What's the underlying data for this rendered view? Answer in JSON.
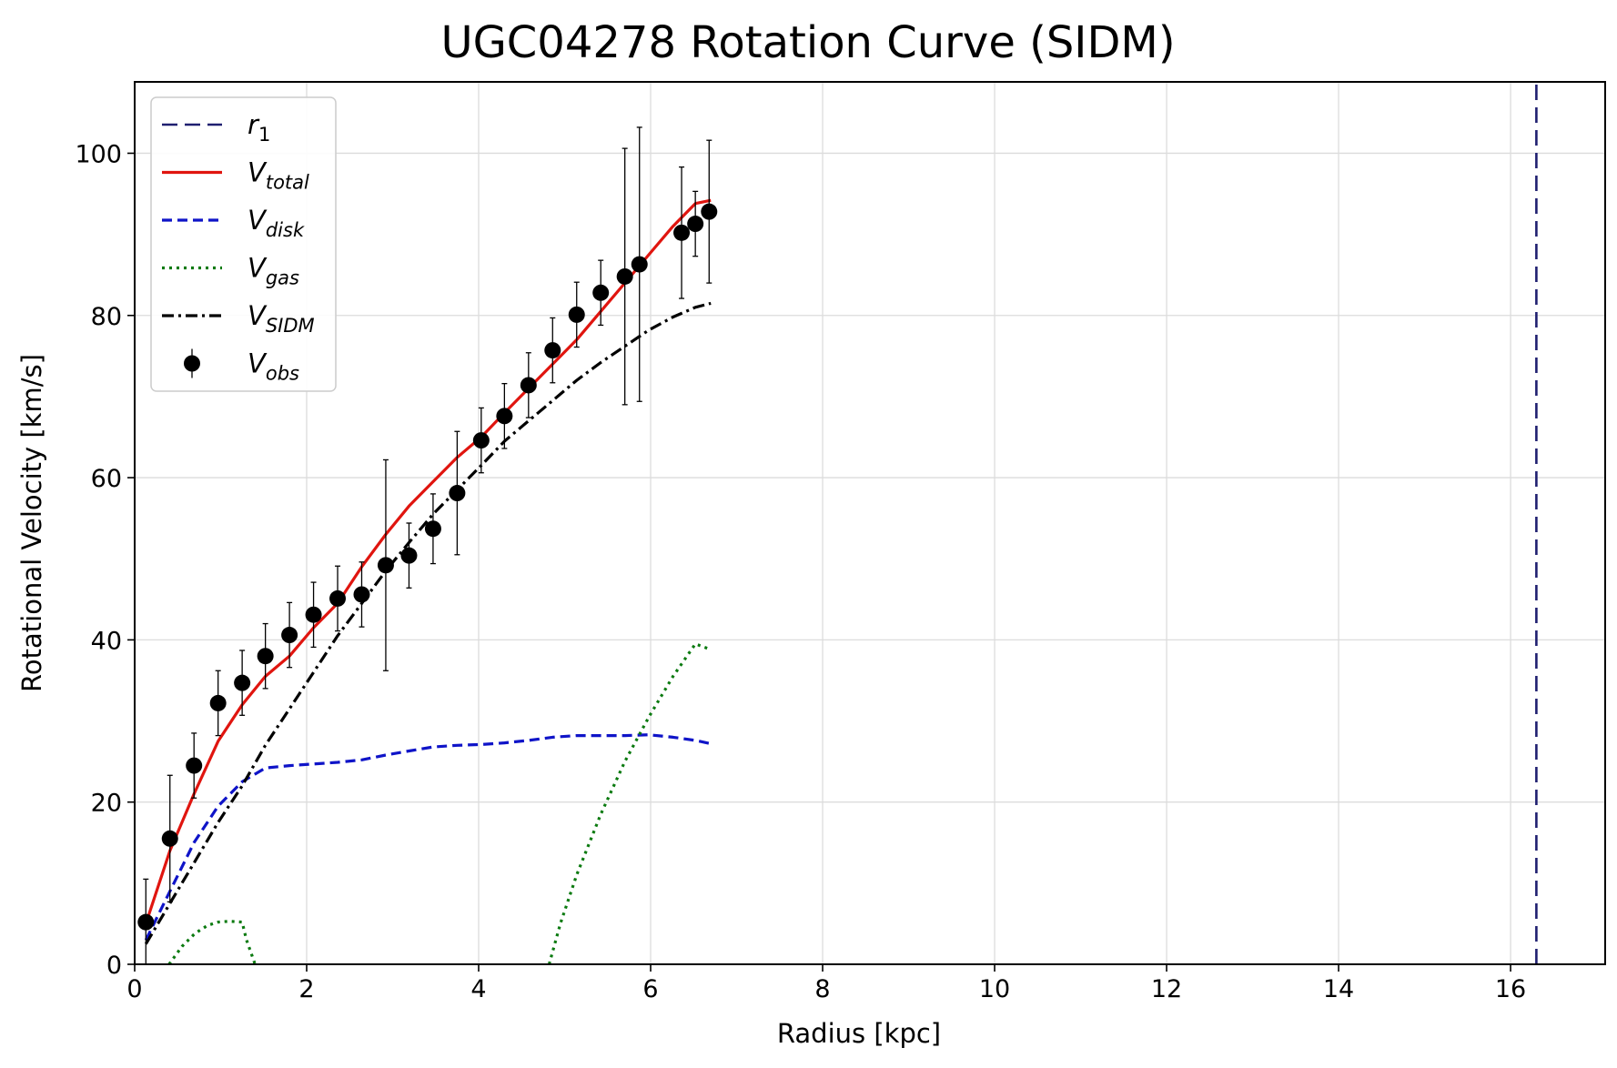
{
  "chart_data": {
    "type": "line",
    "title": "UGC04278 Rotation Curve (SIDM)",
    "xlabel": "Radius [kpc]",
    "ylabel": "Rotational Velocity [km/s]",
    "xlim": [
      0,
      17.1
    ],
    "ylim": [
      0,
      108.8
    ],
    "xticks": [
      0,
      2,
      4,
      6,
      8,
      10,
      12,
      14,
      16
    ],
    "yticks": [
      0,
      20,
      40,
      60,
      80,
      100
    ],
    "grid": true,
    "legend_position": "upper-left",
    "series": [
      {
        "name_main": "r",
        "name_sub": "1",
        "color": "#1f1f70",
        "style": "longdash",
        "x": [
          16.3,
          16.3
        ],
        "y": [
          0,
          108.8
        ]
      },
      {
        "name_main": "V",
        "name_sub": "total",
        "color": "#e0150f",
        "style": "solid",
        "x": [
          0.13,
          0.41,
          0.69,
          0.97,
          1.25,
          1.52,
          1.8,
          2.08,
          2.36,
          2.64,
          2.92,
          3.19,
          3.47,
          3.75,
          4.03,
          4.3,
          4.58,
          4.86,
          5.14,
          5.42,
          5.7,
          5.98,
          6.26,
          6.52,
          6.7
        ],
        "y": [
          5.0,
          14.0,
          21.0,
          27.5,
          32.0,
          35.5,
          38.0,
          41.5,
          44.5,
          49.0,
          53.0,
          56.5,
          59.5,
          62.5,
          65.0,
          68.0,
          71.0,
          74.0,
          77.0,
          80.5,
          84.0,
          87.5,
          91.0,
          93.8,
          94.2
        ]
      },
      {
        "name_main": "V",
        "name_sub": "disk",
        "color": "#0f14c8",
        "style": "dashed",
        "x": [
          0.13,
          0.41,
          0.69,
          0.97,
          1.25,
          1.52,
          1.8,
          2.08,
          2.36,
          2.64,
          2.92,
          3.19,
          3.47,
          3.75,
          4.03,
          4.3,
          4.58,
          4.86,
          5.14,
          5.42,
          5.7,
          5.98,
          6.26,
          6.52,
          6.7
        ],
        "y": [
          3.0,
          9.0,
          15.0,
          19.5,
          22.5,
          24.2,
          24.5,
          24.7,
          24.9,
          25.2,
          25.8,
          26.3,
          26.8,
          27.0,
          27.1,
          27.3,
          27.6,
          28.0,
          28.2,
          28.2,
          28.2,
          28.3,
          28.0,
          27.6,
          27.2
        ]
      },
      {
        "name_main": "V",
        "name_sub": "gas",
        "color": "#0b7a10",
        "style": "dotted",
        "segments": [
          {
            "x": [
              0.4,
              0.55,
              0.7,
              0.85,
              0.97,
              1.1,
              1.25,
              1.3,
              1.35,
              1.4
            ],
            "y": [
              0,
              2.2,
              3.8,
              4.8,
              5.2,
              5.3,
              5.2,
              3.0,
              1.5,
              0
            ]
          },
          {
            "x": [
              4.82,
              4.95,
              5.14,
              5.42,
              5.7,
              5.98,
              6.26,
              6.52,
              6.7
            ],
            "y": [
              0,
              5.0,
              11.0,
              18.5,
              25.0,
              30.5,
              35.5,
              39.5,
              38.8
            ]
          }
        ]
      },
      {
        "name_main": "V",
        "name_sub": "SIDM",
        "color": "#000000",
        "style": "dashdot",
        "x": [
          0.13,
          0.41,
          0.69,
          0.97,
          1.25,
          1.52,
          1.8,
          2.08,
          2.36,
          2.64,
          2.92,
          3.19,
          3.47,
          3.75,
          4.03,
          4.3,
          4.58,
          4.86,
          5.14,
          5.42,
          5.7,
          5.98,
          6.26,
          6.52,
          6.7
        ],
        "y": [
          2.5,
          7.5,
          12.5,
          17.5,
          22.0,
          27.0,
          31.5,
          36.0,
          40.5,
          44.5,
          48.5,
          52.0,
          55.5,
          58.5,
          61.5,
          64.5,
          67.0,
          69.5,
          72.0,
          74.2,
          76.2,
          78.2,
          79.8,
          81.0,
          81.5
        ]
      },
      {
        "name_main": "V",
        "name_sub": "obs",
        "color": "#000000",
        "style": "errorbar",
        "x": [
          0.13,
          0.41,
          0.69,
          0.97,
          1.25,
          1.52,
          1.8,
          2.08,
          2.36,
          2.64,
          2.92,
          3.19,
          3.47,
          3.75,
          4.03,
          4.3,
          4.58,
          4.86,
          5.14,
          5.42,
          5.7,
          5.87,
          6.36,
          6.52,
          6.68
        ],
        "y": [
          5.2,
          15.5,
          24.5,
          32.2,
          34.7,
          38.0,
          40.6,
          43.1,
          45.1,
          45.6,
          49.2,
          50.4,
          53.7,
          58.1,
          64.6,
          67.6,
          71.4,
          75.7,
          80.1,
          82.8,
          84.8,
          86.3,
          90.2,
          91.3,
          92.8
        ],
        "err": [
          5.3,
          7.8,
          4.0,
          4.0,
          4.0,
          4.0,
          4.0,
          4.0,
          4.0,
          4.0,
          13.0,
          4.0,
          4.3,
          7.6,
          4.0,
          4.0,
          4.0,
          4.0,
          4.0,
          4.0,
          15.8,
          16.9,
          8.1,
          4.0,
          8.8
        ]
      }
    ]
  }
}
